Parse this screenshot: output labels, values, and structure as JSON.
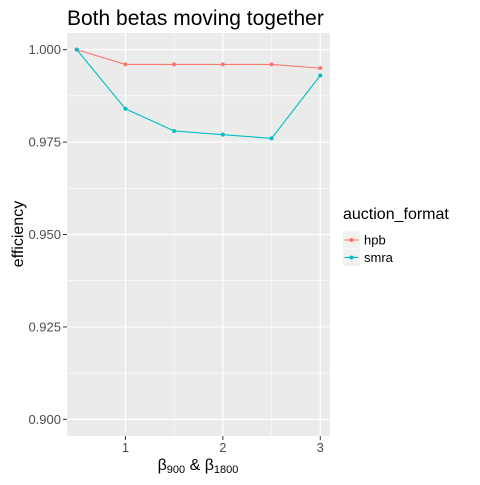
{
  "chart_data": {
    "type": "line",
    "title": "Both betas moving together",
    "xlabel": {
      "beta1": "β",
      "sub1": "900",
      "amp": " & ",
      "beta2": "β",
      "sub2": "1800"
    },
    "ylabel": "efficiency",
    "x": [
      0.5,
      1,
      1.5,
      2,
      2.5,
      3
    ],
    "xlim": [
      0.4,
      3.1
    ],
    "ylim": [
      0.8955,
      1.0045
    ],
    "x_ticks": [
      1,
      2,
      3
    ],
    "x_tick_labels": [
      "1",
      "2",
      "3"
    ],
    "y_ticks": [
      0.9,
      0.925,
      0.95,
      0.975,
      1.0
    ],
    "y_tick_labels": [
      "0.900",
      "0.925",
      "0.950",
      "0.975",
      "1.000"
    ],
    "grid": true,
    "legend": {
      "title": "auction_format",
      "position": "right"
    },
    "series": [
      {
        "name": "hpb",
        "color": "#F8766D",
        "values": [
          1.0,
          0.996,
          0.996,
          0.996,
          0.996,
          0.995
        ]
      },
      {
        "name": "smra",
        "color": "#00BFC4",
        "values": [
          1.0,
          0.984,
          0.978,
          0.977,
          0.976,
          0.993
        ]
      }
    ],
    "colors": {
      "panel_background": "#EBEBEB",
      "grid_major": "#FFFFFF",
      "tick_label": "#4D4D4D"
    }
  }
}
